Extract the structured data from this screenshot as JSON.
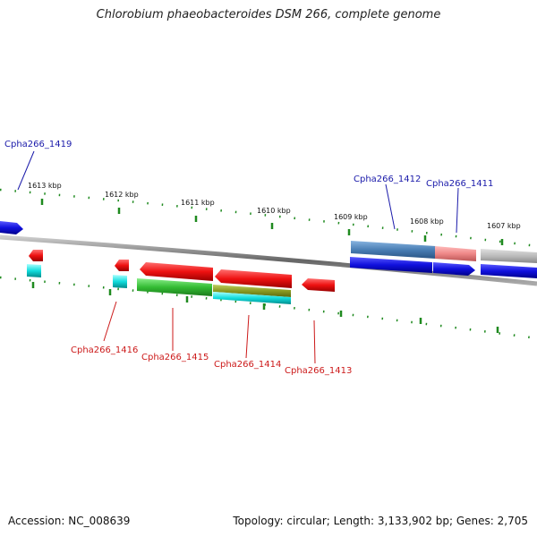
{
  "header": {
    "title": "Chlorobium phaeobacteroides DSM 266, complete genome"
  },
  "footer": {
    "accession": "Accession: NC_008639",
    "topology": "Topology: circular; Length: 3,133,902 bp; Genes: 2,705"
  },
  "ticks": [
    "1613 kbp",
    "1612 kbp",
    "1611 kbp",
    "1610 kbp",
    "1609 kbp",
    "1608 kbp",
    "1607 kbp"
  ],
  "genes_upper": [
    "Cpha266_1419",
    "Cpha266_1412",
    "Cpha266_1411"
  ],
  "genes_lower": [
    "Cpha266_1416",
    "Cpha266_1415",
    "Cpha266_1414",
    "Cpha266_1413"
  ],
  "colors": {
    "backbone": "#777777",
    "tick": "#1f8a1f",
    "forward_gene": "#1010dd",
    "reverse_gene": "#ee1111",
    "cyan_gene": "#11dddd",
    "green_gene": "#33bb33",
    "olive_gene": "#8a9a22",
    "steel_gene": "#4a7fb5",
    "pink_gene": "#ee8888",
    "gray_gene": "#bbbbbb"
  }
}
